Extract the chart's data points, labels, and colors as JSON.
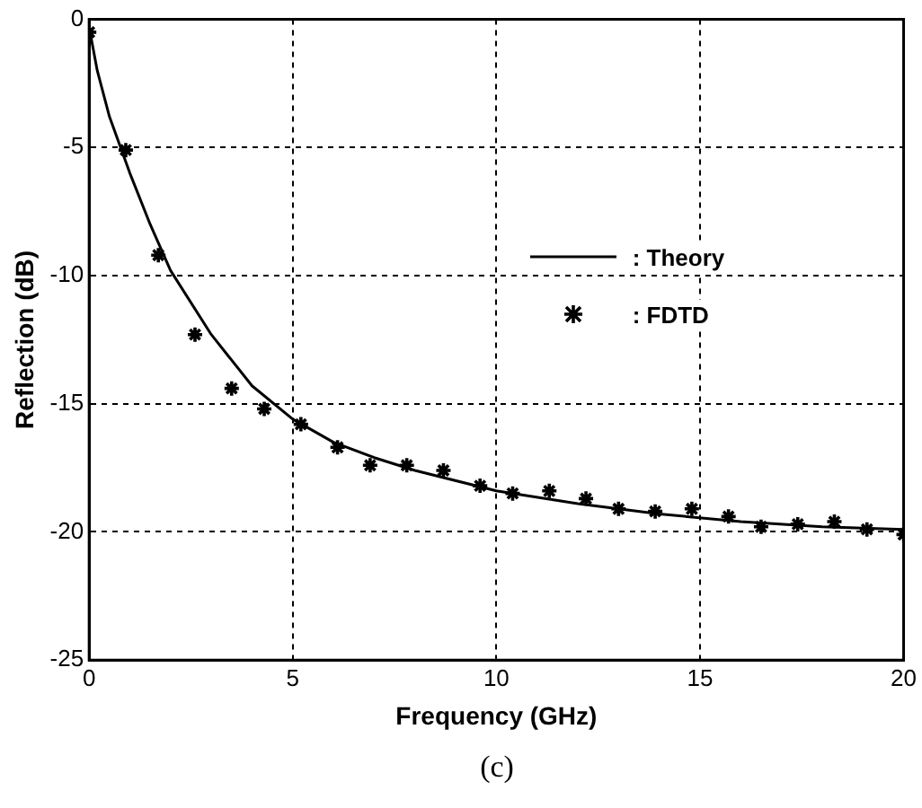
{
  "chart_data": {
    "type": "line",
    "xlabel": "Frequency (GHz)",
    "ylabel": "Reflection (dB)",
    "annotations": [
      "(c)"
    ],
    "xlim": [
      0,
      20
    ],
    "xticks": [
      0,
      5,
      10,
      15,
      20
    ],
    "ylim": [
      -25,
      0
    ],
    "yticks": [
      -25,
      -20,
      -15,
      -10,
      -5,
      0
    ],
    "grid": true,
    "legend": "right",
    "series": [
      {
        "name": ": Theory",
        "type": "line",
        "color": "#000000",
        "marker": "none",
        "line_style": "solid",
        "x": [
          0,
          0.2,
          0.5,
          1,
          1.5,
          2,
          3,
          4,
          5,
          6,
          7,
          8,
          10,
          12,
          14,
          16,
          18,
          20
        ],
        "values": [
          -0.3,
          -2,
          -3.8,
          -6,
          -8,
          -9.8,
          -12.3,
          -14.3,
          -15.6,
          -16.5,
          -17.1,
          -17.6,
          -18.4,
          -18.9,
          -19.3,
          -19.6,
          -19.8,
          -19.9
        ]
      },
      {
        "name": ": FDTD",
        "type": "scatter",
        "color": "#000000",
        "marker": "cross",
        "x": [
          0,
          0.9,
          1.7,
          2.6,
          3.5,
          4.3,
          5.2,
          6.1,
          6.9,
          7.8,
          8.7,
          9.6,
          10.4,
          11.3,
          12.2,
          13,
          13.9,
          14.8,
          15.7,
          16.5,
          17.4,
          18.3,
          19.1,
          20
        ],
        "values": [
          -0.5,
          -5.1,
          -9.2,
          -12.3,
          -14.4,
          -15.2,
          -15.8,
          -16.7,
          -17.4,
          -17.4,
          -17.6,
          -18.2,
          -18.5,
          -18.4,
          -18.7,
          -19.1,
          -19.2,
          -19.1,
          -19.4,
          -19.8,
          -19.7,
          -19.6,
          -19.9,
          -20.1
        ]
      }
    ]
  }
}
